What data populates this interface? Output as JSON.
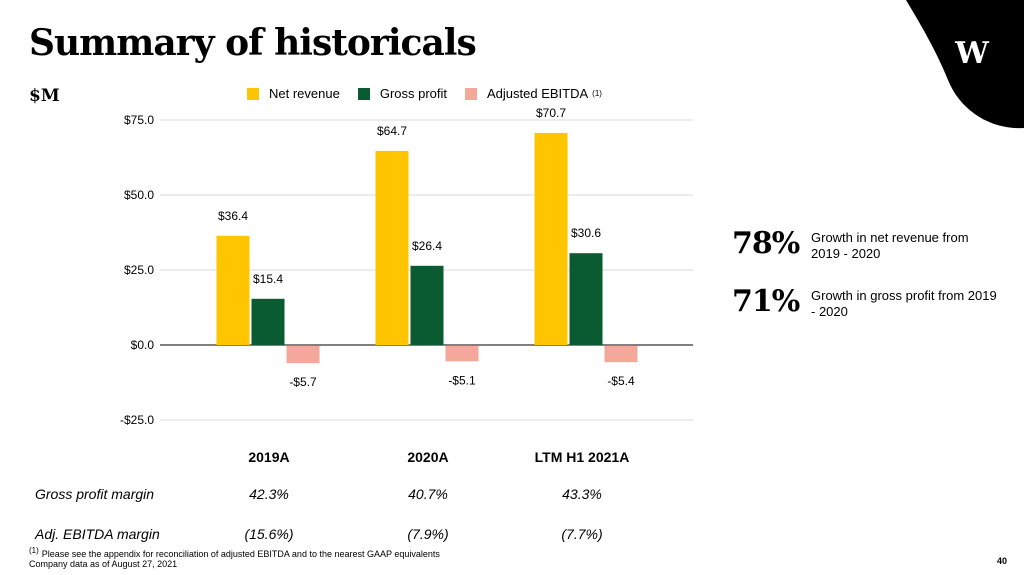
{
  "title": "Summary of historicals",
  "unit_label": "$M",
  "logo_letter": "W",
  "colors": {
    "net_revenue": "#FFC600",
    "gross_profit": "#0A5A32",
    "adjusted_ebitda": "#F4A899",
    "axis": "#000000",
    "grid": "#D9D9D9"
  },
  "legend": {
    "items": [
      "Net revenue",
      "Gross profit",
      "Adjusted EBITDA"
    ],
    "ebitda_note": "(1)"
  },
  "chart_data": {
    "type": "bar",
    "categories": [
      "2019A",
      "2020A",
      "LTM H1 2021A"
    ],
    "series": [
      {
        "name": "Net revenue",
        "values": [
          36.4,
          64.7,
          70.7
        ],
        "labels": [
          "$36.4",
          "$64.7",
          "$70.7"
        ]
      },
      {
        "name": "Gross profit",
        "values": [
          15.4,
          26.4,
          30.6
        ],
        "labels": [
          "$15.4",
          "$26.4",
          "$30.6"
        ]
      },
      {
        "name": "Adjusted EBITDA",
        "values": [
          -5.7,
          -5.1,
          -5.4
        ],
        "labels": [
          "-$5.7",
          "-$5.1",
          "-$5.4"
        ]
      }
    ],
    "yticks": [
      75,
      50,
      25,
      0,
      -25
    ],
    "ytick_labels": [
      "$75.0",
      "$50.0",
      "$25.0",
      "$0.0",
      "-$25.0"
    ],
    "ylim": [
      -25,
      75
    ],
    "ylabel": "$M",
    "grid": true
  },
  "margins": {
    "gross_profit_label": "Gross profit margin",
    "gross_profit_values": [
      "42.3%",
      "40.7%",
      "43.3%"
    ],
    "ebitda_label": "Adj. EBITDA margin",
    "ebitda_values": [
      "(15.6%)",
      "(7.9%)",
      "(7.7%)"
    ]
  },
  "stats": [
    {
      "value": "78%",
      "text": "Growth in net revenue from 2019 - 2020"
    },
    {
      "value": "71%",
      "text": "Growth in gross profit from 2019 - 2020"
    }
  ],
  "footnotes": {
    "note_marker": "(1)",
    "note_text": "Please see the appendix for reconciliation of adjusted EBITDA and to the nearest GAAP equivalents",
    "source": "Company data as of August 27, 2021"
  },
  "page_number": "40"
}
